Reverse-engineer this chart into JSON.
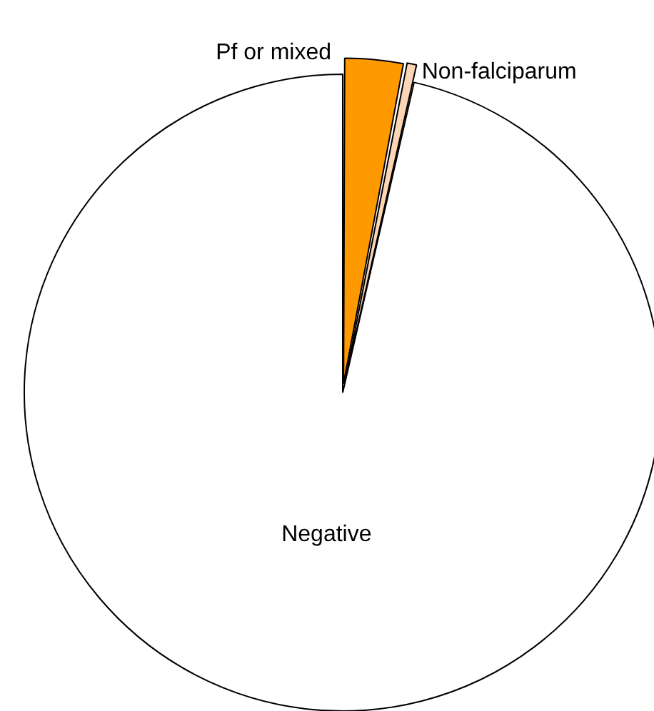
{
  "chart_data": {
    "type": "pie",
    "categories": [
      "Pf or mixed",
      "Non-falciparum",
      "Negative"
    ],
    "values": [
      3,
      0.6,
      96.4
    ],
    "colors": [
      "#ff9900",
      "#fcd5b4",
      "#ffffff"
    ],
    "legend": false
  }
}
